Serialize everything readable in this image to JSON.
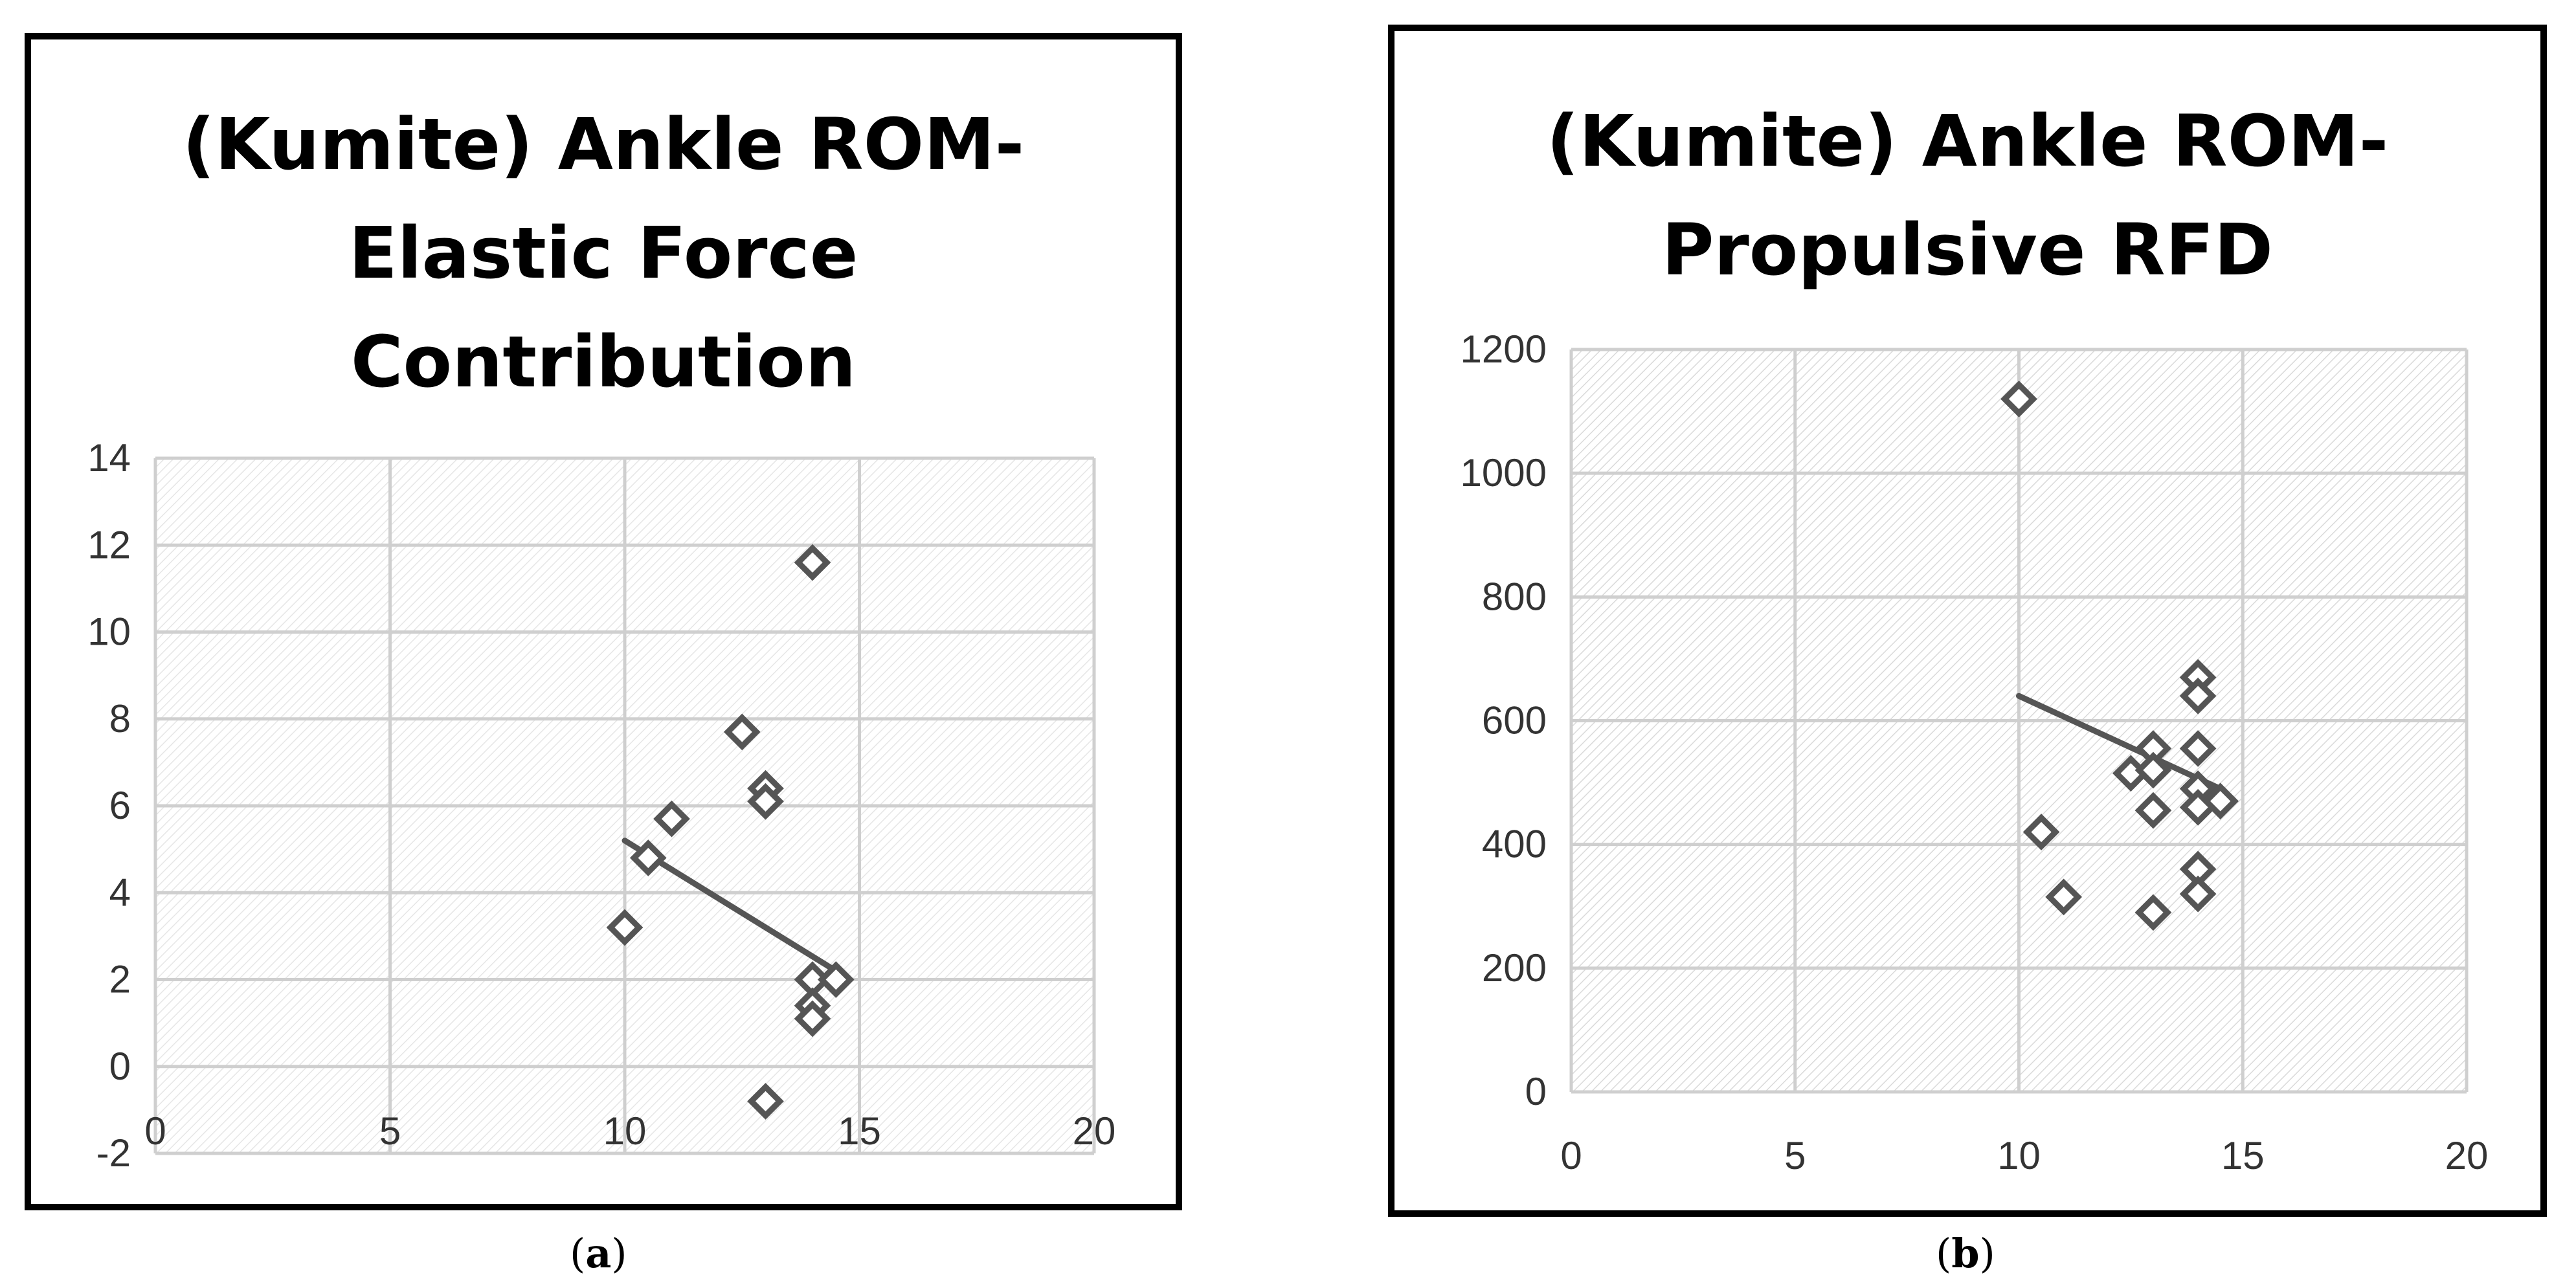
{
  "chart_data": [
    {
      "type": "scatter",
      "panel": "a",
      "title_lines": [
        "(Kumite) Ankle ROM-",
        "Elastic Force",
        "Contribution"
      ],
      "caption_letter": "a",
      "xlim": [
        0,
        20
      ],
      "ylim": [
        -2,
        14
      ],
      "x_ticks": [
        "0",
        "5",
        "10",
        "15",
        "20"
      ],
      "y_ticks": [
        "-2",
        "0",
        "2",
        "4",
        "6",
        "8",
        "10",
        "12",
        "14"
      ],
      "grid": true,
      "marker": "diamond",
      "marker_color": "#555555",
      "points": [
        {
          "x": 10.0,
          "y": 3.2
        },
        {
          "x": 10.5,
          "y": 4.8
        },
        {
          "x": 11.0,
          "y": 5.7
        },
        {
          "x": 12.5,
          "y": 7.7
        },
        {
          "x": 13.0,
          "y": 6.4
        },
        {
          "x": 13.0,
          "y": 6.1
        },
        {
          "x": 14.0,
          "y": 11.6
        },
        {
          "x": 14.0,
          "y": 2.0
        },
        {
          "x": 14.5,
          "y": 2.0
        },
        {
          "x": 14.0,
          "y": 1.4
        },
        {
          "x": 14.0,
          "y": 1.1
        },
        {
          "x": 13.0,
          "y": -0.8
        }
      ],
      "trendline": {
        "x": [
          10.0,
          14.5
        ],
        "y": [
          5.2,
          2.2
        ]
      }
    },
    {
      "type": "scatter",
      "panel": "b",
      "title_lines": [
        "(Kumite) Ankle ROM-",
        "Propulsive RFD"
      ],
      "caption_letter": "b",
      "xlim": [
        0,
        20
      ],
      "ylim": [
        0,
        1200
      ],
      "x_ticks": [
        "0",
        "5",
        "10",
        "15",
        "20"
      ],
      "y_ticks": [
        "0",
        "200",
        "400",
        "600",
        "800",
        "1000",
        "1200"
      ],
      "grid": true,
      "marker": "diamond",
      "marker_color": "#555555",
      "points": [
        {
          "x": 10.0,
          "y": 1120
        },
        {
          "x": 10.5,
          "y": 420
        },
        {
          "x": 11.0,
          "y": 315
        },
        {
          "x": 12.5,
          "y": 515
        },
        {
          "x": 13.0,
          "y": 555
        },
        {
          "x": 13.0,
          "y": 520
        },
        {
          "x": 13.0,
          "y": 455
        },
        {
          "x": 13.0,
          "y": 290
        },
        {
          "x": 14.0,
          "y": 670
        },
        {
          "x": 14.0,
          "y": 640
        },
        {
          "x": 14.0,
          "y": 555
        },
        {
          "x": 14.0,
          "y": 490
        },
        {
          "x": 14.0,
          "y": 460
        },
        {
          "x": 14.5,
          "y": 470
        },
        {
          "x": 14.0,
          "y": 360
        },
        {
          "x": 14.0,
          "y": 320
        }
      ],
      "trendline": {
        "x": [
          10.0,
          14.5
        ],
        "y": [
          640,
          490
        ]
      }
    }
  ]
}
